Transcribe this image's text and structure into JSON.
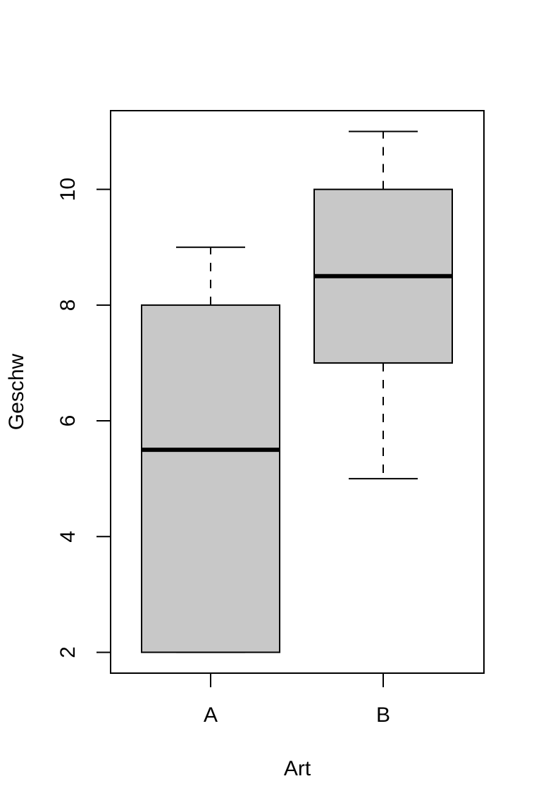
{
  "chart_data": {
    "type": "boxplot",
    "xlabel": "Art",
    "ylabel": "Geschw",
    "categories": [
      "A",
      "B"
    ],
    "min": [
      2,
      5
    ],
    "q1": [
      2,
      7
    ],
    "median": [
      5.5,
      8.5
    ],
    "q3": [
      8,
      10
    ],
    "max": [
      9,
      11
    ],
    "color": "#c8c8c8",
    "ylim": [
      1.64,
      11.36
    ],
    "yticks": [
      2,
      4,
      6,
      8,
      10
    ]
  }
}
